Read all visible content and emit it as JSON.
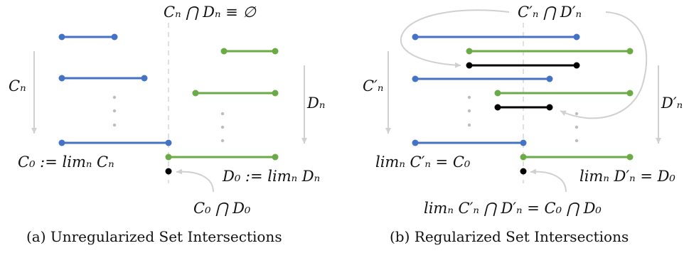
{
  "colors": {
    "blue": "#4472c4",
    "green": "#6aab45",
    "black": "#000000",
    "arrow_gray": "#d0d0d0",
    "dash_gray": "#d5d5d5",
    "dot_gray": "#bdbdbd"
  },
  "panel_a": {
    "caption": "(a) Unregularized Set Intersections",
    "top_label": "Cₙ ⋂ Dₙ ≡ ∅",
    "left_label": "Cₙ",
    "right_label": "Dₙ",
    "c0_label": "C₀ := limₙ Cₙ",
    "d0_label": "D₀ := limₙ Dₙ",
    "intersection_label": "C₀ ⋂ D₀"
  },
  "panel_b": {
    "caption": "(b) Regularized Set Intersections",
    "top_label": "C′ₙ ⋂ D′ₙ",
    "left_label": "C′ₙ",
    "right_label": "D′ₙ",
    "c_limit_label": "limₙ C′ₙ = C₀",
    "d_limit_label": "limₙ D′ₙ = D₀",
    "intersection_label": "limₙ C′ₙ ⋂ D′ₙ = C₀ ⋂ D₀"
  }
}
